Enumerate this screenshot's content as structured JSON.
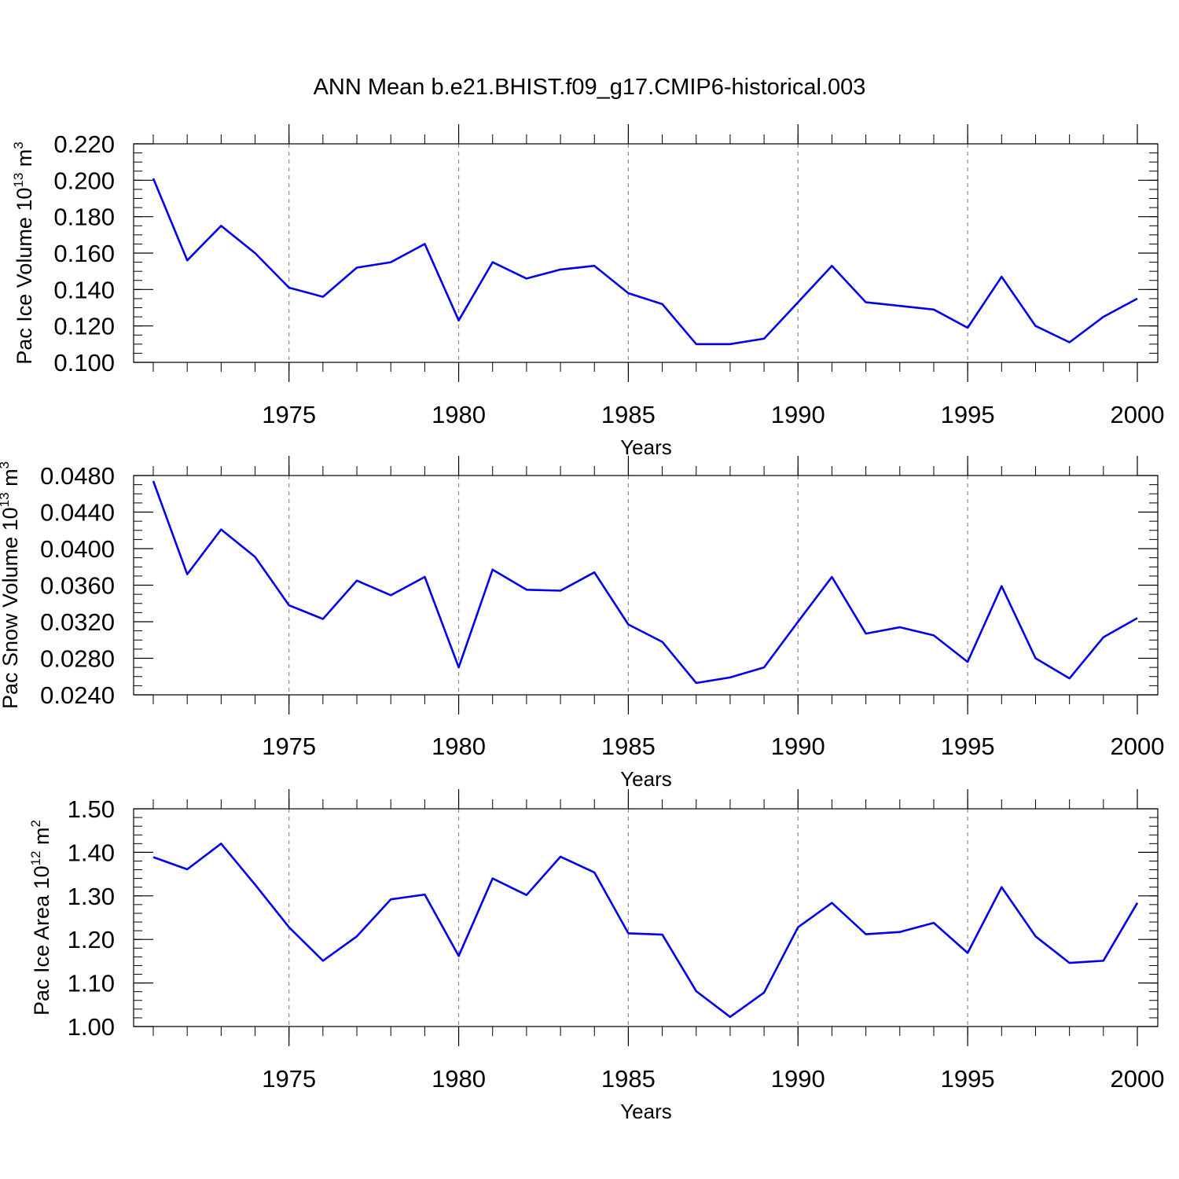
{
  "title": "ANN Mean b.e21.BHIST.f09_g17.CMIP6-historical.003",
  "colors": {
    "line": "#0000ee",
    "axis": "#000000",
    "grid": "#8c8c8c"
  },
  "chart_data": [
    {
      "type": "line",
      "title": "ANN Mean b.e21.BHIST.f09_g17.CMIP6-historical.003",
      "xlabel": "Years",
      "ylabel": "Pac Ice Volume 10",
      "ylabel_exp": "13",
      "ylabel_unit": "m",
      "ylabel_unit_exp": "3",
      "x": [
        1971,
        1972,
        1973,
        1974,
        1975,
        1976,
        1977,
        1978,
        1979,
        1980,
        1981,
        1982,
        1983,
        1984,
        1985,
        1986,
        1987,
        1988,
        1989,
        1990,
        1991,
        1992,
        1993,
        1994,
        1995,
        1996,
        1997,
        1998,
        1999,
        2000
      ],
      "values": [
        0.201,
        0.156,
        0.175,
        0.16,
        0.141,
        0.136,
        0.152,
        0.155,
        0.165,
        0.123,
        0.155,
        0.146,
        0.151,
        0.153,
        0.138,
        0.132,
        0.11,
        0.11,
        0.113,
        0.133,
        0.153,
        0.133,
        0.131,
        0.129,
        0.119,
        0.147,
        0.12,
        0.111,
        0.125,
        0.135
      ],
      "xlim": [
        1971,
        2000
      ],
      "ylim": [
        0.1,
        0.22
      ],
      "yticks": [
        0.1,
        0.12,
        0.14,
        0.16,
        0.18,
        0.2,
        0.22
      ],
      "ytick_labels": [
        "0.100",
        "0.120",
        "0.140",
        "0.160",
        "0.180",
        "0.200",
        "0.220"
      ],
      "yminor_step": 0.005,
      "xticks": [
        1975,
        1980,
        1985,
        1990,
        1995,
        2000
      ],
      "xtick_labels": [
        "1975",
        "1980",
        "1985",
        "1990",
        "1995",
        "2000"
      ],
      "grid": "x-dashed"
    },
    {
      "type": "line",
      "xlabel": "Years",
      "ylabel": "Pac Snow Volume 10",
      "ylabel_exp": "13",
      "ylabel_unit": "m",
      "ylabel_unit_exp": "3",
      "x": [
        1971,
        1972,
        1973,
        1974,
        1975,
        1976,
        1977,
        1978,
        1979,
        1980,
        1981,
        1982,
        1983,
        1984,
        1985,
        1986,
        1987,
        1988,
        1989,
        1990,
        1991,
        1992,
        1993,
        1994,
        1995,
        1996,
        1997,
        1998,
        1999,
        2000
      ],
      "values": [
        0.0474,
        0.0372,
        0.0421,
        0.0391,
        0.0338,
        0.0323,
        0.0365,
        0.0349,
        0.0369,
        0.027,
        0.0377,
        0.0355,
        0.0354,
        0.0374,
        0.0317,
        0.0298,
        0.0253,
        0.0259,
        0.027,
        0.032,
        0.0369,
        0.0307,
        0.0314,
        0.0305,
        0.0276,
        0.0359,
        0.028,
        0.0258,
        0.0303,
        0.0324
      ],
      "xlim": [
        1971,
        2000
      ],
      "ylim": [
        0.024,
        0.048
      ],
      "yticks": [
        0.024,
        0.028,
        0.032,
        0.036,
        0.04,
        0.044,
        0.048
      ],
      "ytick_labels": [
        "0.0240",
        "0.0280",
        "0.0320",
        "0.0360",
        "0.0400",
        "0.0440",
        "0.0480"
      ],
      "yminor_step": 0.001,
      "xticks": [
        1975,
        1980,
        1985,
        1990,
        1995,
        2000
      ],
      "xtick_labels": [
        "1975",
        "1980",
        "1985",
        "1990",
        "1995",
        "2000"
      ],
      "grid": "x-dashed"
    },
    {
      "type": "line",
      "xlabel": "Years",
      "ylabel": "Pac Ice Area 10",
      "ylabel_exp": "12",
      "ylabel_unit": "m",
      "ylabel_unit_exp": "2",
      "x": [
        1971,
        1972,
        1973,
        1974,
        1975,
        1976,
        1977,
        1978,
        1979,
        1980,
        1981,
        1982,
        1983,
        1984,
        1985,
        1986,
        1987,
        1988,
        1989,
        1990,
        1991,
        1992,
        1993,
        1994,
        1995,
        1996,
        1997,
        1998,
        1999,
        2000
      ],
      "values": [
        1.389,
        1.361,
        1.42,
        1.326,
        1.228,
        1.151,
        1.207,
        1.292,
        1.303,
        1.162,
        1.34,
        1.302,
        1.39,
        1.354,
        1.214,
        1.211,
        1.081,
        1.022,
        1.078,
        1.228,
        1.284,
        1.212,
        1.217,
        1.238,
        1.169,
        1.32,
        1.207,
        1.146,
        1.151,
        1.284
      ],
      "xlim": [
        1971,
        2000
      ],
      "ylim": [
        1.0,
        1.5
      ],
      "yticks": [
        1.0,
        1.1,
        1.2,
        1.3,
        1.4,
        1.5
      ],
      "ytick_labels": [
        "1.00",
        "1.10",
        "1.20",
        "1.30",
        "1.40",
        "1.50"
      ],
      "yminor_step": 0.02,
      "xticks": [
        1975,
        1980,
        1985,
        1990,
        1995,
        2000
      ],
      "xtick_labels": [
        "1975",
        "1980",
        "1985",
        "1990",
        "1995",
        "2000"
      ],
      "grid": "x-dashed"
    }
  ]
}
